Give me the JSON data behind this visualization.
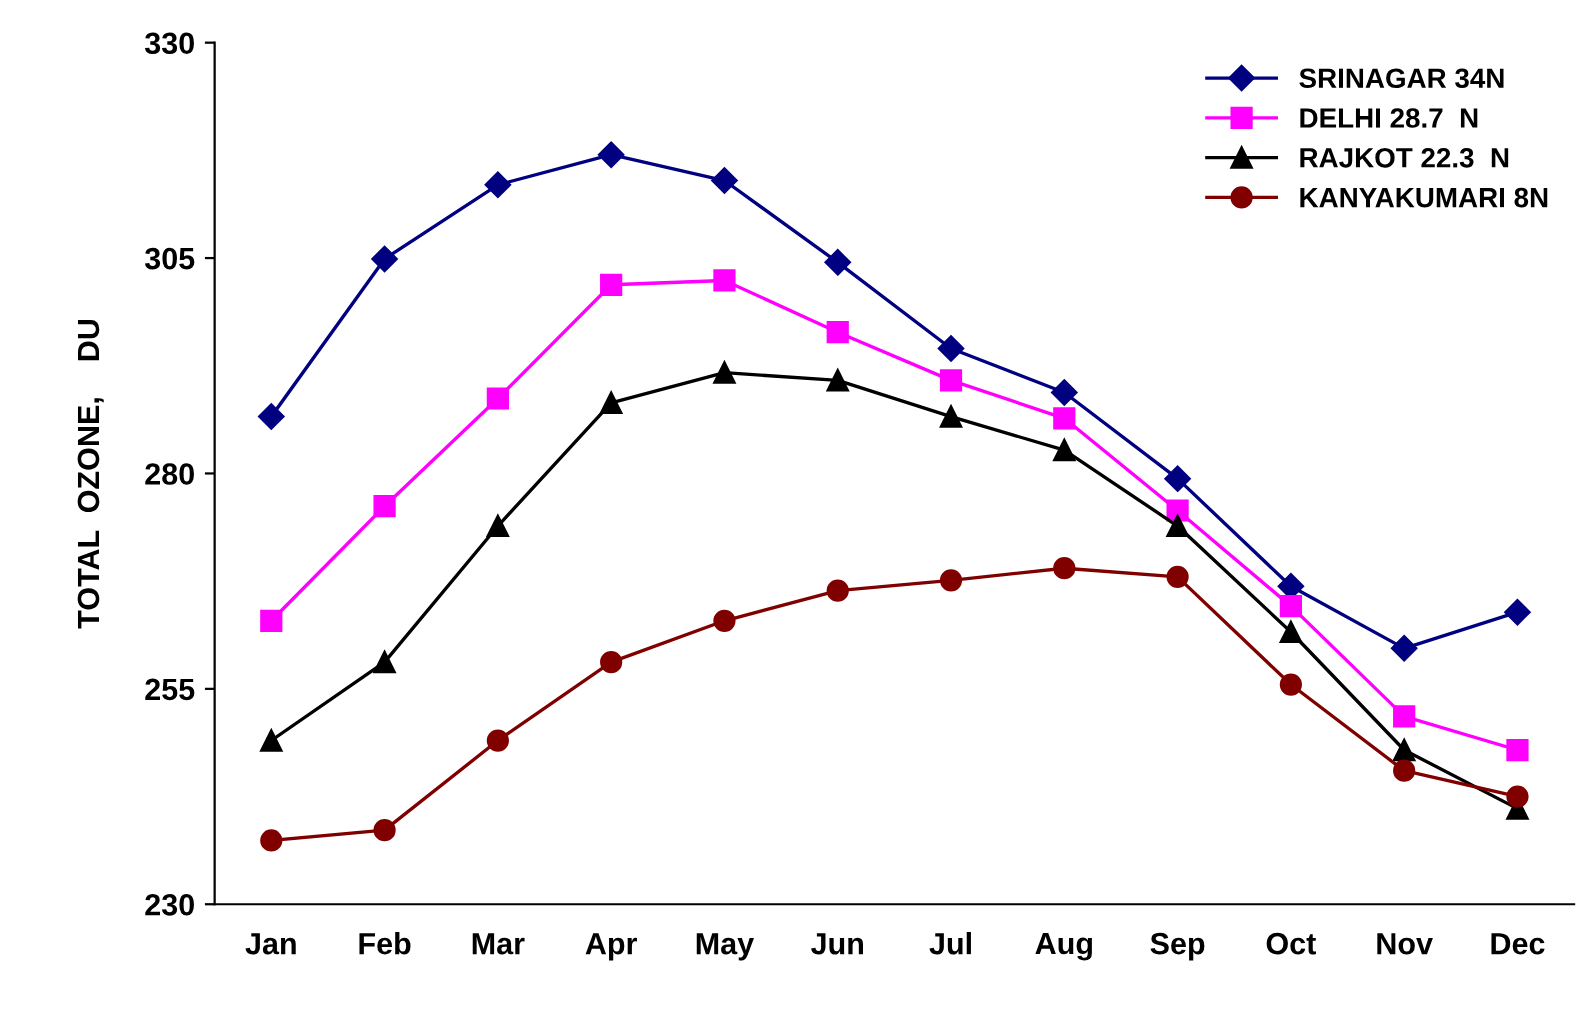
{
  "chart_data": {
    "type": "line",
    "ylabel": "TOTAL  OZONE,    DU",
    "categories": [
      "Jan",
      "Feb",
      "Mar",
      "Apr",
      "May",
      "Jun",
      "Jul",
      "Aug",
      "Sep",
      "Oct",
      "Nov",
      "Dec"
    ],
    "series": [
      {
        "name": "SRINAGAR 34N",
        "color": "#000080",
        "marker": "diamond",
        "values": [
          286.6,
          304.9,
          313.5,
          317,
          314,
          304.5,
          294.5,
          289.4,
          279.4,
          266.9,
          259.7,
          263.9
        ]
      },
      {
        "name": "DELHI 28.7  N",
        "color": "#ff00ff",
        "marker": "square",
        "values": [
          262.9,
          276.2,
          288.7,
          301.9,
          302.4,
          296.4,
          290.8,
          286.4,
          275.7,
          264.6,
          251.8,
          247.9
        ]
      },
      {
        "name": "RAJKOT 22.3  N",
        "color": "#000000",
        "marker": "triangle",
        "values": [
          249,
          258.1,
          273.9,
          288.2,
          291.7,
          290.8,
          286.6,
          282.7,
          273.9,
          261.6,
          247.9,
          241.1
        ]
      },
      {
        "name": "KANYAKUMARI 8N",
        "color": "#800000",
        "marker": "circle",
        "values": [
          237.4,
          238.6,
          249,
          258.1,
          262.9,
          266.4,
          267.6,
          269,
          268,
          255.5,
          245.5,
          242.5
        ]
      }
    ],
    "ylim": [
      230,
      330
    ],
    "yticks": [
      230,
      255,
      280,
      305,
      330
    ],
    "grid": false,
    "legend": "top right",
    "line_style": "solid"
  }
}
